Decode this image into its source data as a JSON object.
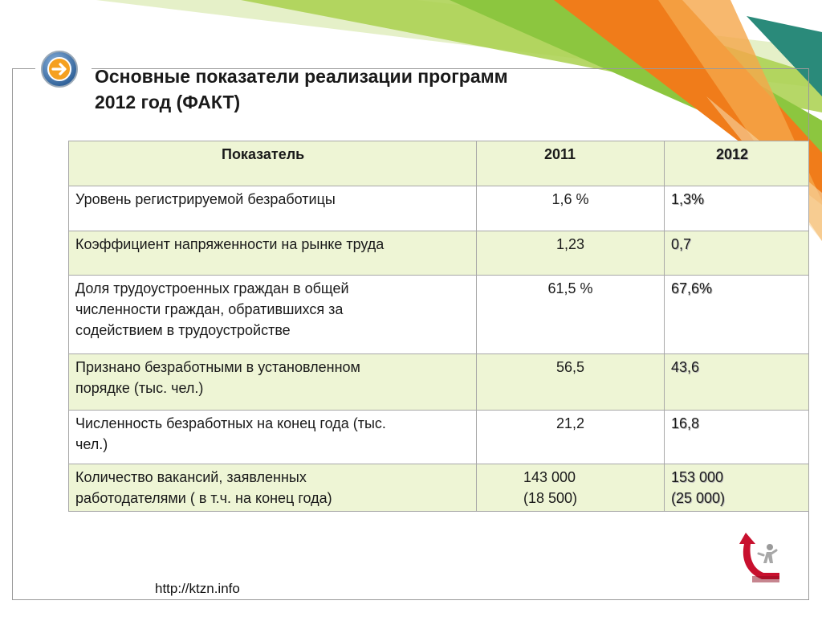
{
  "slide": {
    "title_line1": "Основные показатели реализации программ",
    "title_line2": "2012 год (ФАКТ)",
    "footer_url": "http://ktzn.info"
  },
  "table": {
    "headers": [
      "Показатель",
      "2011",
      "2012"
    ],
    "rows": [
      {
        "indicator_lines": [
          "Уровень регистрируемой безработицы"
        ],
        "y2011_lines": [
          "1,6 %"
        ],
        "y2012_lines": [
          "1,3%"
        ]
      },
      {
        "indicator_lines": [
          "Коэффициент напряженности на рынке труда"
        ],
        "y2011_lines": [
          "1,23"
        ],
        "y2012_lines": [
          "0,7"
        ]
      },
      {
        "indicator_lines": [
          "Доля трудоустроенных граждан в общей",
          "численности граждан, обратившихся за",
          "содействием в трудоустройстве"
        ],
        "y2011_lines": [
          "61,5 %"
        ],
        "y2012_lines": [
          "67,6%"
        ]
      },
      {
        "indicator_lines": [
          "Признано безработными в установленном",
          "порядке (тыс. чел.)"
        ],
        "y2011_lines": [
          "56,5"
        ],
        "y2012_lines": [
          "43,6"
        ]
      },
      {
        "indicator_lines": [
          "Численность безработных на конец года (тыс.",
          "чел.)"
        ],
        "y2011_lines": [
          "21,2"
        ],
        "y2012_lines": [
          "16,8"
        ]
      },
      {
        "indicator_lines": [
          "Количество вакансий, заявленных",
          "работодателями ( в т.ч. на конец года)"
        ],
        "y2011_lines": [
          "143 000",
          "(18 500)"
        ],
        "y2012_lines": [
          "153 000",
          "(25 000)"
        ]
      }
    ]
  },
  "colors": {
    "header_bg": "#eef5d5",
    "stripe_bg": "#eef5d5",
    "accent_orange": "#f07c1a",
    "accent_green": "#8cc63f",
    "accent_teal": "#2a8a7a"
  },
  "icons": {
    "title_icon": "arrow-right-circle-icon",
    "logo": "red-arrow-figure-logo"
  }
}
